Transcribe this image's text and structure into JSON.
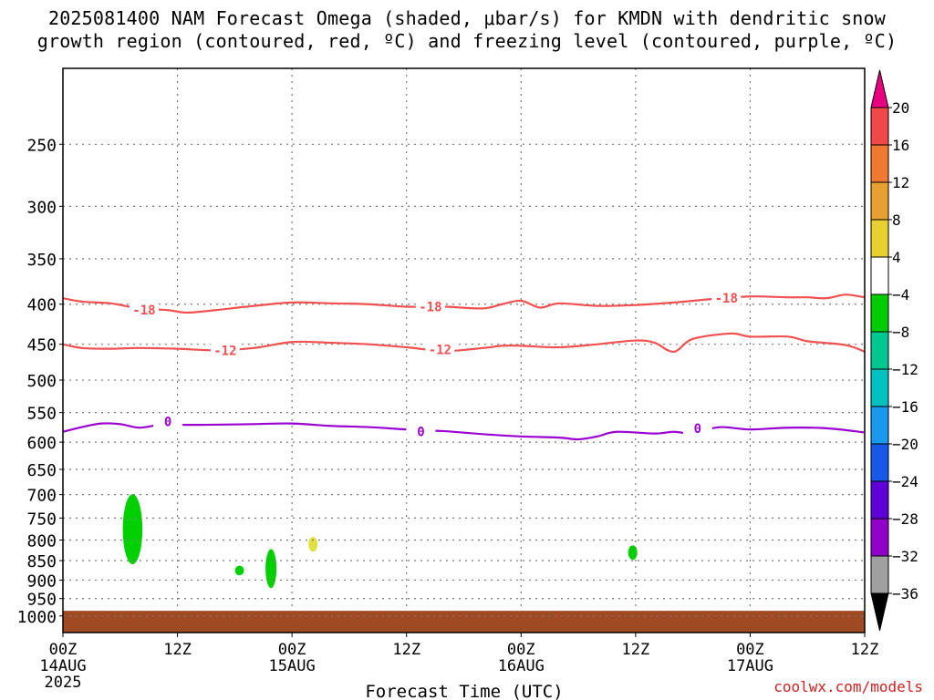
{
  "title_line1": "2025081400 NAM Forecast Omega (shaded, μbar/s) for KMDN with dendritic snow",
  "title_line2": "growth region (contoured, red, ºC) and freezing level (contoured, purple, ºC)",
  "credit": "coolwx.com/models",
  "chart_data": {
    "type": "contour",
    "xlabel": "Forecast Time (UTC)",
    "ylabel": "",
    "x_range_hours": [
      0,
      84
    ],
    "y_range_hPa": [
      200,
      1050
    ],
    "y_scale": "log",
    "grid": true,
    "x_ticks": [
      {
        "hour": 0,
        "label": "00Z",
        "date": "14AUG",
        "year": "2025"
      },
      {
        "hour": 12,
        "label": "12Z",
        "date": "",
        "year": ""
      },
      {
        "hour": 24,
        "label": "00Z",
        "date": "15AUG",
        "year": ""
      },
      {
        "hour": 36,
        "label": "12Z",
        "date": "",
        "year": ""
      },
      {
        "hour": 48,
        "label": "00Z",
        "date": "16AUG",
        "year": ""
      },
      {
        "hour": 60,
        "label": "12Z",
        "date": "",
        "year": ""
      },
      {
        "hour": 72,
        "label": "00Z",
        "date": "17AUG",
        "year": ""
      },
      {
        "hour": 84,
        "label": "12Z",
        "date": "",
        "year": ""
      }
    ],
    "y_ticks": [
      250,
      300,
      350,
      400,
      450,
      500,
      550,
      600,
      650,
      700,
      750,
      800,
      850,
      900,
      950,
      1000
    ],
    "contours": [
      {
        "name": "-18",
        "color": "#f05050",
        "labels": [
          {
            "hour": 8.5,
            "p": 407
          },
          {
            "hour": 38.5,
            "p": 403
          },
          {
            "hour": 69.5,
            "p": 393
          }
        ],
        "points": [
          [
            0,
            393
          ],
          [
            2,
            397
          ],
          [
            5,
            399
          ],
          [
            8,
            405
          ],
          [
            11,
            407
          ],
          [
            13,
            410
          ],
          [
            16,
            407
          ],
          [
            20,
            402
          ],
          [
            24,
            398
          ],
          [
            28,
            399
          ],
          [
            32,
            400
          ],
          [
            36,
            403
          ],
          [
            40,
            403
          ],
          [
            44,
            405
          ],
          [
            46,
            400
          ],
          [
            48,
            396
          ],
          [
            50,
            404
          ],
          [
            52,
            399
          ],
          [
            56,
            402
          ],
          [
            60,
            401
          ],
          [
            64,
            398
          ],
          [
            68,
            394
          ],
          [
            72,
            391
          ],
          [
            76,
            392
          ],
          [
            78,
            392
          ],
          [
            80,
            393
          ],
          [
            82,
            389
          ],
          [
            84,
            392
          ]
        ]
      },
      {
        "name": "-12",
        "color": "#f05050",
        "labels": [
          {
            "hour": 17,
            "p": 458
          },
          {
            "hour": 39.5,
            "p": 457
          }
        ],
        "points": [
          [
            0,
            450
          ],
          [
            2,
            455
          ],
          [
            5,
            456
          ],
          [
            8,
            455
          ],
          [
            12,
            456
          ],
          [
            16,
            458
          ],
          [
            20,
            455
          ],
          [
            24,
            447
          ],
          [
            28,
            448
          ],
          [
            32,
            450
          ],
          [
            36,
            454
          ],
          [
            40,
            459
          ],
          [
            44,
            455
          ],
          [
            46,
            452
          ],
          [
            48,
            452
          ],
          [
            52,
            454
          ],
          [
            56,
            450
          ],
          [
            60,
            445
          ],
          [
            62,
            448
          ],
          [
            64,
            460
          ],
          [
            66,
            443
          ],
          [
            70,
            436
          ],
          [
            72,
            440
          ],
          [
            76,
            440
          ],
          [
            78,
            446
          ],
          [
            82,
            451
          ],
          [
            84,
            460
          ]
        ]
      },
      {
        "name": "0",
        "color": "#9a00d0",
        "labels": [
          {
            "hour": 11,
            "p": 565
          },
          {
            "hour": 37.5,
            "p": 582
          },
          {
            "hour": 66.5,
            "p": 576
          }
        ],
        "points": [
          [
            0,
            582
          ],
          [
            2,
            574
          ],
          [
            4,
            568
          ],
          [
            6,
            569
          ],
          [
            8,
            575
          ],
          [
            10,
            570
          ],
          [
            11,
            566
          ],
          [
            12,
            570
          ],
          [
            16,
            570
          ],
          [
            20,
            569
          ],
          [
            24,
            568
          ],
          [
            28,
            572
          ],
          [
            32,
            574
          ],
          [
            36,
            578
          ],
          [
            40,
            581
          ],
          [
            44,
            586
          ],
          [
            48,
            590
          ],
          [
            52,
            592
          ],
          [
            54,
            595
          ],
          [
            56,
            590
          ],
          [
            58,
            582
          ],
          [
            62,
            585
          ],
          [
            64,
            582
          ],
          [
            66,
            586
          ],
          [
            67,
            580
          ],
          [
            69,
            574
          ],
          [
            72,
            578
          ],
          [
            76,
            575
          ],
          [
            80,
            576
          ],
          [
            84,
            583
          ]
        ]
      }
    ],
    "omega_areas": [
      {
        "value_range": [
          -8,
          -4
        ],
        "color": "#00d000",
        "hour_center": 7.3,
        "p_center": 775,
        "p_span": [
          700,
          860
        ]
      },
      {
        "value_range": [
          -8,
          -4
        ],
        "color": "#00d000",
        "hour_center": 21.8,
        "p_center": 870,
        "p_span": [
          820,
          920
        ]
      },
      {
        "value_range": [
          -8,
          -4
        ],
        "color": "#00d000",
        "hour_center": 18.5,
        "p_center": 875,
        "p_span": [
          860,
          885
        ]
      },
      {
        "value_range": [
          4,
          8
        ],
        "color": "#e0e040",
        "hour_center": 26.2,
        "p_center": 810,
        "p_span": [
          795,
          830
        ]
      },
      {
        "value_range": [
          -8,
          -4
        ],
        "color": "#00d000",
        "hour_center": 59.7,
        "p_center": 830,
        "p_span": [
          810,
          845
        ]
      }
    ],
    "ground": {
      "color": "#a04a24",
      "p_top": 985
    },
    "colorbar": {
      "labels": [
        "20",
        "16",
        "12",
        "8",
        "4",
        "−4",
        "−8",
        "−12",
        "−16",
        "−20",
        "−24",
        "−28",
        "−32",
        "−36"
      ],
      "colors": [
        "#e80080",
        "#f04848",
        "#f07830",
        "#e8a030",
        "#e8d030",
        "#ffffff",
        "#00cc00",
        "#00c890",
        "#00c0c0",
        "#1a98ee",
        "#1858e8",
        "#6000d8",
        "#9000c8",
        "#a0a0a0",
        "#000000"
      ]
    }
  }
}
